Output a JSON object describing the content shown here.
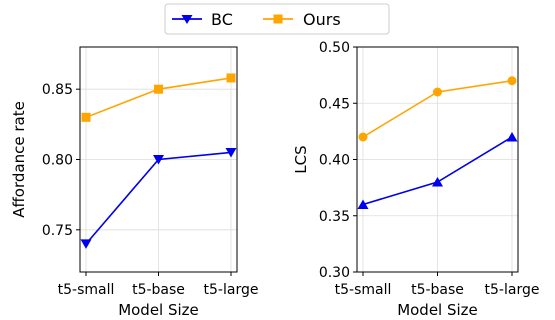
{
  "legend": {
    "entries": [
      {
        "label": "BC",
        "color": "#0000ee",
        "marker": "triangle-down"
      },
      {
        "label": "Ours",
        "color": "#ffa500",
        "marker": "square"
      }
    ]
  },
  "chart_data": [
    {
      "type": "line",
      "xlabel": "Model Size",
      "ylabel": "Affordance rate",
      "categories": [
        "t5-small",
        "t5-base",
        "t5-large"
      ],
      "ylim": [
        0.72,
        0.88
      ],
      "yticks": [
        0.75,
        0.8,
        0.85
      ],
      "ytick_labels": [
        "0.75",
        "0.80",
        "0.85"
      ],
      "grid": true,
      "series": [
        {
          "name": "BC",
          "values": [
            0.74,
            0.8,
            0.805
          ],
          "color": "#0000ee",
          "marker": "triangle-down"
        },
        {
          "name": "Ours",
          "values": [
            0.83,
            0.85,
            0.858
          ],
          "color": "#ffa500",
          "marker": "square"
        }
      ]
    },
    {
      "type": "line",
      "xlabel": "Model Size",
      "ylabel": "LCS",
      "categories": [
        "t5-small",
        "t5-base",
        "t5-large"
      ],
      "ylim": [
        0.3,
        0.5
      ],
      "yticks": [
        0.3,
        0.35,
        0.4,
        0.45,
        0.5
      ],
      "ytick_labels": [
        "0.30",
        "0.35",
        "0.40",
        "0.45",
        "0.50"
      ],
      "grid": true,
      "series": [
        {
          "name": "BC",
          "values": [
            0.36,
            0.38,
            0.42
          ],
          "color": "#0000ee",
          "marker": "triangle-up"
        },
        {
          "name": "Ours",
          "values": [
            0.42,
            0.46,
            0.47
          ],
          "color": "#ffa500",
          "marker": "circle"
        }
      ]
    }
  ]
}
